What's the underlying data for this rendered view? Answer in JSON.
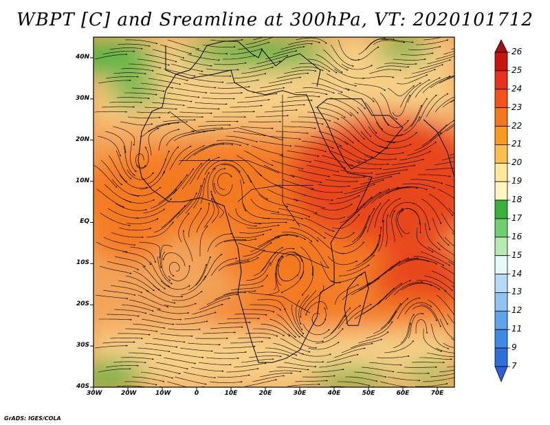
{
  "title": "WBPT [C] and Sreamline at 300hPa, VT: 2020101712",
  "credit": "GrADS: IGES/COLA",
  "lat_labels": [
    "40N",
    "30N",
    "20N",
    "10N",
    "EQ",
    "10S",
    "20S",
    "30S",
    "40S"
  ],
  "lat_values": [
    40,
    30,
    20,
    10,
    0,
    -10,
    -20,
    -30,
    -40
  ],
  "lon_labels": [
    "30W",
    "20W",
    "10W",
    "0",
    "10E",
    "20E",
    "30E",
    "40E",
    "50E",
    "60E",
    "70E"
  ],
  "lon_values": [
    -30,
    -20,
    -10,
    0,
    10,
    20,
    30,
    40,
    50,
    60,
    70
  ],
  "map_extent": {
    "lon_min": -30,
    "lon_max": 75,
    "lat_min": -40,
    "lat_max": 45
  },
  "colorbar": {
    "labels": [
      "26",
      "25",
      "24",
      "23",
      "22",
      "21",
      "20",
      "19",
      "18",
      "17",
      "16",
      "15",
      "14",
      "13",
      "12",
      "11",
      "9",
      "7"
    ],
    "colors": [
      "#a50f15",
      "#c8160f",
      "#e8301c",
      "#f4521a",
      "#f7761c",
      "#f89a1f",
      "#fbbf4e",
      "#fde79a",
      "#fef4c1",
      "#37b23a",
      "#6dd06e",
      "#b7eab2",
      "#e6f8fb",
      "#b5dcf6",
      "#8fc3f1",
      "#5ea4ea",
      "#3e8be4",
      "#2f6fd9",
      "#2e5fd6"
    ]
  },
  "colors": {
    "warm_core": "#e8471f",
    "warm": "#f47a22",
    "mid": "#f2a45a",
    "pale": "#f6cf86",
    "cool_green": "#37b23a",
    "coast": "#000000",
    "streamline": "#000000"
  }
}
